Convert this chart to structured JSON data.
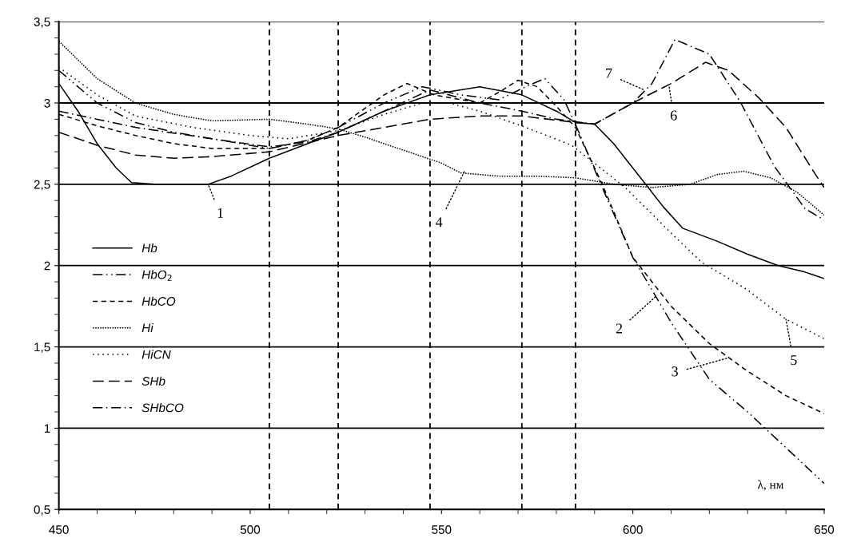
{
  "chart_data": {
    "type": "line",
    "xlabel": "λ, нм",
    "xlim": [
      450,
      650
    ],
    "xticks": [
      450,
      500,
      550,
      600,
      650
    ],
    "ylim": [
      0.5,
      3.5
    ],
    "yticks": [
      {
        "value": 0.5,
        "label": "0,5"
      },
      {
        "value": 1,
        "label": "1"
      },
      {
        "value": 1.5,
        "label": "1,5"
      },
      {
        "value": 2,
        "label": "2"
      },
      {
        "value": 2.5,
        "label": "2,5"
      },
      {
        "value": 3,
        "label": "3"
      },
      {
        "value": 3.5,
        "label": "3,5"
      }
    ],
    "grid": "y",
    "legend": "left",
    "marker": "none",
    "series": [
      {
        "name": "Hb",
        "color": "#000000",
        "line_style": "solid",
        "x": [
          450,
          455,
          460,
          465,
          469,
          475,
          480,
          489,
          495,
          505,
          515,
          523,
          535,
          547,
          560,
          571,
          580,
          585,
          590,
          595,
          603,
          608,
          613,
          622,
          630,
          638,
          645,
          650
        ],
        "values": [
          3.12,
          2.95,
          2.75,
          2.6,
          2.51,
          2.5,
          2.5,
          2.5,
          2.55,
          2.66,
          2.75,
          2.82,
          2.95,
          3.05,
          3.1,
          3.05,
          2.95,
          2.88,
          2.87,
          2.75,
          2.51,
          2.36,
          2.23,
          2.15,
          2.07,
          2.0,
          1.96,
          1.92
        ]
      },
      {
        "name": "HbO$_{2}$",
        "color": "#000000",
        "line_style": "dashdotdot",
        "x": [
          450,
          460,
          470,
          480,
          490,
          505,
          515,
          523,
          535,
          545,
          555,
          565,
          572,
          577,
          582,
          585,
          592,
          600,
          610,
          620,
          630,
          640,
          650
        ],
        "values": [
          3.2,
          3.0,
          2.88,
          2.82,
          2.78,
          2.72,
          2.77,
          2.85,
          3.0,
          3.1,
          3.05,
          3.02,
          3.1,
          3.15,
          3.02,
          2.87,
          2.48,
          2.05,
          1.65,
          1.3,
          1.1,
          0.88,
          0.66
        ]
      },
      {
        "name": "HbCO",
        "color": "#000000",
        "line_style": "dashed",
        "x": [
          450,
          460,
          470,
          480,
          490,
          505,
          515,
          523,
          535,
          541,
          548,
          560,
          566,
          570,
          575,
          580,
          585,
          592,
          600,
          610,
          620,
          630,
          640,
          650
        ],
        "values": [
          2.93,
          2.86,
          2.8,
          2.75,
          2.72,
          2.72,
          2.77,
          2.85,
          3.05,
          3.12,
          3.05,
          3.0,
          3.08,
          3.14,
          3.1,
          2.98,
          2.85,
          2.5,
          2.05,
          1.75,
          1.52,
          1.35,
          1.2,
          1.09
        ]
      },
      {
        "name": "Hi",
        "color": "#000000",
        "line_style": "dotted",
        "x": [
          450,
          460,
          470,
          480,
          490,
          505,
          515,
          523,
          530,
          540,
          550,
          555,
          565,
          575,
          585,
          595,
          605,
          615,
          622,
          629,
          636,
          643,
          650
        ],
        "values": [
          3.38,
          3.15,
          3.0,
          2.93,
          2.89,
          2.9,
          2.87,
          2.84,
          2.79,
          2.71,
          2.63,
          2.57,
          2.55,
          2.55,
          2.54,
          2.5,
          2.48,
          2.5,
          2.56,
          2.58,
          2.54,
          2.45,
          2.31
        ]
      },
      {
        "name": "HiCN",
        "color": "#000000",
        "line_style": "sparsedot",
        "x": [
          450,
          460,
          470,
          485,
          500,
          510,
          523,
          535,
          545,
          552,
          560,
          572,
          584,
          598,
          610,
          618,
          630,
          640,
          650
        ],
        "values": [
          3.22,
          3.05,
          2.92,
          2.85,
          2.8,
          2.78,
          2.83,
          2.93,
          3.0,
          3.0,
          2.95,
          2.85,
          2.74,
          2.48,
          2.2,
          2.02,
          1.85,
          1.67,
          1.55
        ]
      },
      {
        "name": "SHb",
        "color": "#000000",
        "line_style": "longdash",
        "x": [
          450,
          460,
          470,
          480,
          490,
          505,
          523,
          535,
          547,
          560,
          571,
          585,
          590,
          600,
          610,
          619,
          625,
          633,
          640,
          648,
          650
        ],
        "values": [
          2.82,
          2.74,
          2.68,
          2.66,
          2.67,
          2.7,
          2.8,
          2.85,
          2.9,
          2.92,
          2.92,
          2.88,
          2.87,
          3.0,
          3.12,
          3.25,
          3.2,
          3.03,
          2.85,
          2.55,
          2.48
        ]
      },
      {
        "name": "SHbCO",
        "color": "#000000",
        "line_style": "dashdot",
        "x": [
          450,
          460,
          470,
          490,
          505,
          515,
          523,
          535,
          547,
          560,
          571,
          580,
          590,
          600,
          605,
          611,
          620,
          628,
          637,
          645,
          650
        ],
        "values": [
          2.95,
          2.9,
          2.85,
          2.78,
          2.73,
          2.76,
          2.82,
          2.95,
          3.08,
          3.0,
          2.95,
          2.9,
          2.87,
          3.0,
          3.12,
          3.39,
          3.3,
          3.01,
          2.61,
          2.35,
          2.28
        ]
      }
    ],
    "ref_lines": [
      {
        "axis": "x",
        "value": 505,
        "color": "#000000",
        "line_style": "dashed"
      },
      {
        "axis": "x",
        "value": 523,
        "color": "#000000",
        "line_style": "dashed"
      },
      {
        "axis": "x",
        "value": 547,
        "color": "#000000",
        "line_style": "dashed"
      },
      {
        "axis": "x",
        "value": 571,
        "color": "#000000",
        "line_style": "dashed"
      },
      {
        "axis": "x",
        "value": 585,
        "color": "#000000",
        "line_style": "dashed"
      }
    ],
    "annotations": [
      {
        "text": "1",
        "x": 489,
        "y": 2.5
      },
      {
        "text": "2",
        "x": 606,
        "y": 1.81
      },
      {
        "text": "3",
        "x": 624.6,
        "y": 1.43
      },
      {
        "text": "4",
        "x": 556,
        "y": 2.58
      },
      {
        "text": "5",
        "x": 640,
        "y": 1.67
      },
      {
        "text": "6",
        "x": 609.5,
        "y": 3.1
      },
      {
        "text": "7",
        "x": 603,
        "y": 3.08
      }
    ]
  }
}
